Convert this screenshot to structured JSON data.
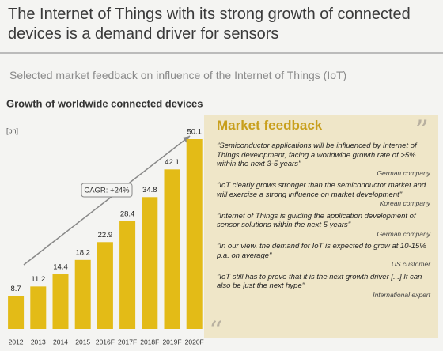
{
  "header": {
    "title": "The Internet of Things with its strong growth of connected devices is a demand driver for sensors",
    "subtitle": "Selected market feedback on influence of the Internet of Things (IoT)"
  },
  "chart_data": {
    "type": "bar",
    "title": "Growth of worldwide connected devices",
    "unit": "[bn]",
    "annotation": "CAGR: +24%",
    "categories": [
      "2012",
      "2013",
      "2014",
      "2015",
      "2016F",
      "2017F",
      "2018F",
      "2019F",
      "2020F"
    ],
    "values": [
      8.7,
      11.2,
      14.4,
      18.2,
      22.9,
      28.4,
      34.8,
      42.1,
      50.1
    ],
    "color": "#e3bb17"
  },
  "feedback": {
    "title": "Market feedback",
    "quotes": [
      {
        "text": "\"Semiconductor applications will be influenced by Internet of Things development, facing a worldwide growth rate of >5% within the next 3-5 years\"",
        "source": "German company"
      },
      {
        "text": "\"IoT clearly grows stronger than the semiconductor market and will exercise a strong influence on market development\"",
        "source": "Korean company"
      },
      {
        "text": "\"Internet of Things is guiding the application development of sensor solutions within the next 5 years\"",
        "source": "German company"
      },
      {
        "text": "\"In our view, the demand for IoT is expected to grow at 10-15% p.a. on average\"",
        "source": "US customer"
      },
      {
        "text": "\"IoT still has to prove that it is the next growth driver [...] It can also be just the next hype\"",
        "source": "International expert"
      }
    ]
  }
}
